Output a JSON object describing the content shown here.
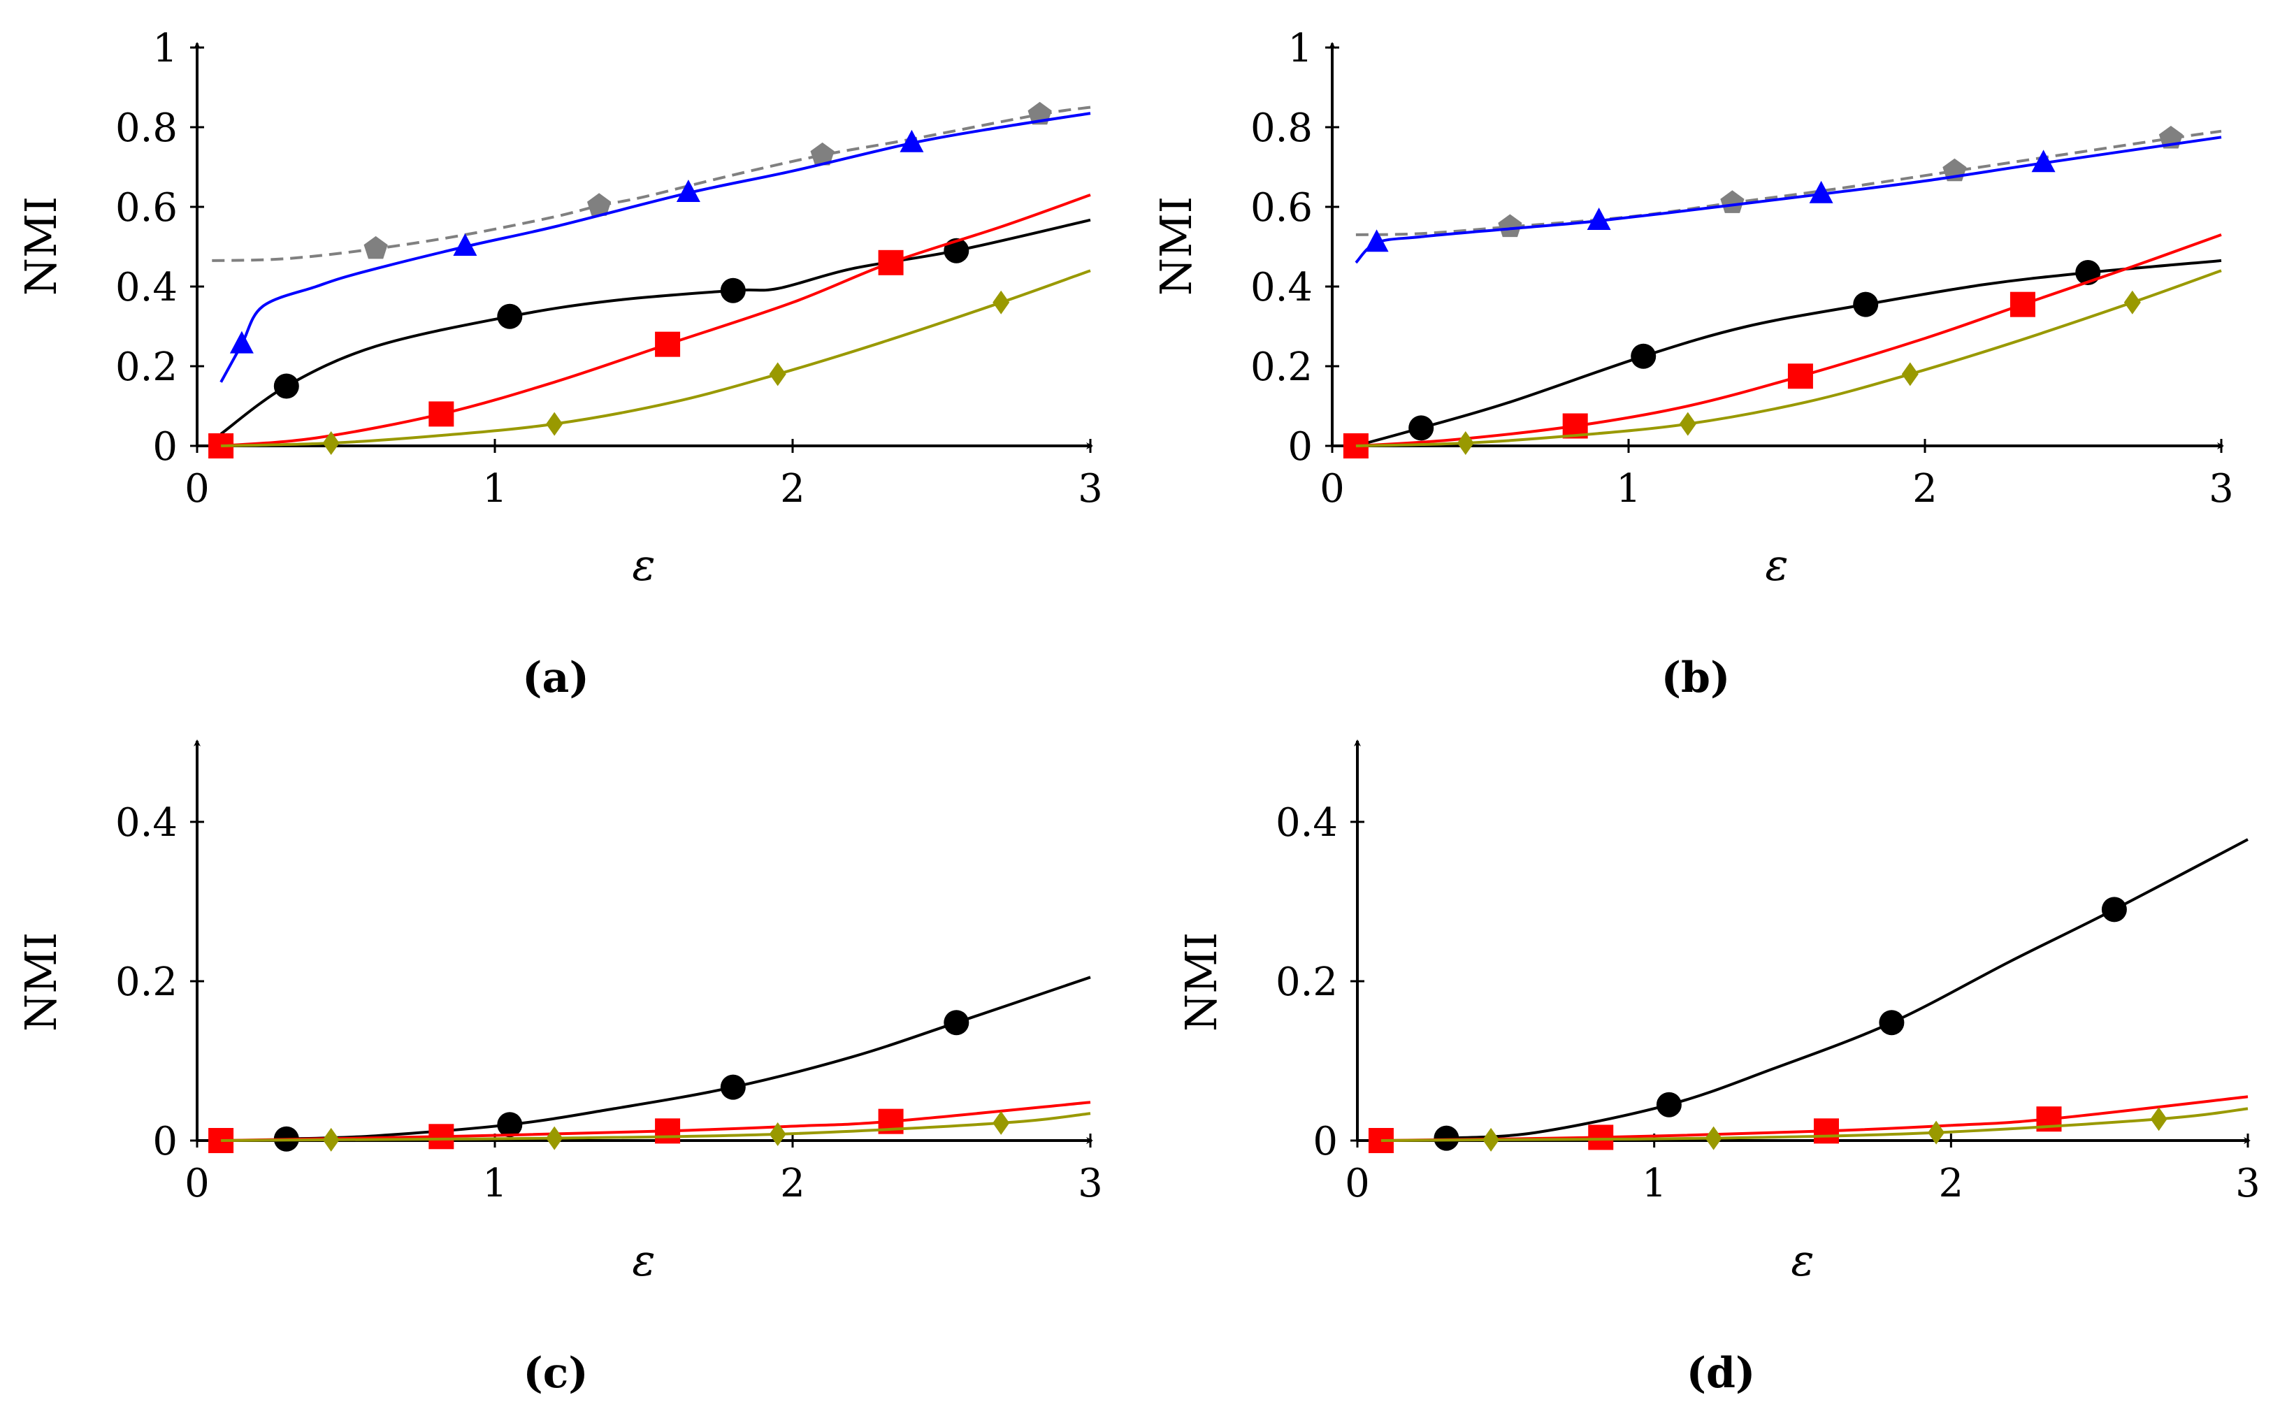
{
  "chart_data": [
    {
      "type": "line",
      "caption": "(a)",
      "xlabel": "ε",
      "ylabel": "NMI",
      "xlim": [
        0,
        3
      ],
      "ylim": [
        0,
        1
      ],
      "xticks": [
        "0",
        "1",
        "2",
        "3"
      ],
      "yticks": [
        "0",
        "0.2",
        "0.4",
        "0.6",
        "0.8",
        "1"
      ],
      "yticks_values": [
        0,
        0.2,
        0.4,
        0.6,
        0.8,
        1
      ],
      "series": [
        {
          "name": "gray-pentagon",
          "color": "#808080",
          "marker": "pentagon",
          "dashed": true,
          "x": [
            0.05,
            0.3,
            0.6,
            0.9,
            1.2,
            1.35,
            1.5,
            1.8,
            2.1,
            2.4,
            2.83,
            3.0
          ],
          "y": [
            0.465,
            0.47,
            0.495,
            0.53,
            0.575,
            0.603,
            0.625,
            0.68,
            0.73,
            0.77,
            0.832,
            0.85
          ],
          "markers_x": [
            0.6,
            1.35,
            2.1,
            2.83
          ],
          "markers_y": [
            0.495,
            0.603,
            0.73,
            0.832
          ]
        },
        {
          "name": "blue-triangle",
          "color": "#0000ff",
          "marker": "triangle",
          "dashed": false,
          "x": [
            0.08,
            0.15,
            0.22,
            0.4,
            0.55,
            0.9,
            1.2,
            1.65,
            2.0,
            2.4,
            2.7,
            3.0
          ],
          "y": [
            0.16,
            0.255,
            0.35,
            0.4,
            0.435,
            0.5,
            0.55,
            0.635,
            0.69,
            0.76,
            0.8,
            0.835
          ],
          "markers_x": [
            0.15,
            0.9,
            1.65,
            2.4
          ],
          "markers_y": [
            0.255,
            0.5,
            0.635,
            0.76
          ]
        },
        {
          "name": "black-circle",
          "color": "#000000",
          "marker": "circle",
          "dashed": false,
          "x": [
            0.08,
            0.3,
            0.6,
            1.05,
            1.4,
            1.8,
            1.95,
            2.2,
            2.55,
            3.0
          ],
          "y": [
            0.03,
            0.15,
            0.25,
            0.325,
            0.365,
            0.39,
            0.395,
            0.445,
            0.49,
            0.567
          ],
          "markers_x": [
            0.3,
            1.05,
            1.8,
            2.55
          ],
          "markers_y": [
            0.15,
            0.325,
            0.39,
            0.49
          ]
        },
        {
          "name": "red-square",
          "color": "#ff0000",
          "marker": "square",
          "dashed": false,
          "x": [
            0.08,
            0.4,
            0.82,
            1.2,
            1.58,
            2.0,
            2.33,
            2.7,
            3.0
          ],
          "y": [
            0.0,
            0.02,
            0.08,
            0.16,
            0.255,
            0.36,
            0.46,
            0.55,
            0.63
          ],
          "markers_x": [
            0.08,
            0.82,
            1.58,
            2.33
          ],
          "markers_y": [
            0.0,
            0.08,
            0.255,
            0.46
          ]
        },
        {
          "name": "olive-diamond",
          "color": "#999900",
          "marker": "diamond",
          "dashed": false,
          "x": [
            0.08,
            0.45,
            0.8,
            1.2,
            1.6,
            1.95,
            2.3,
            2.7,
            3.0
          ],
          "y": [
            0.0,
            0.007,
            0.025,
            0.055,
            0.11,
            0.18,
            0.26,
            0.36,
            0.44
          ],
          "markers_x": [
            0.45,
            1.2,
            1.95,
            2.7
          ],
          "markers_y": [
            0.007,
            0.055,
            0.18,
            0.36
          ]
        }
      ]
    },
    {
      "type": "line",
      "caption": "(b)",
      "xlabel": "ε",
      "ylabel": "NMI",
      "xlim": [
        0,
        3
      ],
      "ylim": [
        0,
        1
      ],
      "xticks": [
        "0",
        "1",
        "2",
        "3"
      ],
      "yticks": [
        "0",
        "0.2",
        "0.4",
        "0.6",
        "0.8",
        "1"
      ],
      "yticks_values": [
        0,
        0.2,
        0.4,
        0.6,
        0.8,
        1
      ],
      "series": [
        {
          "name": "gray-pentagon",
          "color": "#808080",
          "marker": "pentagon",
          "dashed": true,
          "x": [
            0.08,
            0.3,
            0.6,
            1.0,
            1.35,
            1.7,
            2.1,
            2.5,
            2.83,
            3.0
          ],
          "y": [
            0.53,
            0.533,
            0.55,
            0.575,
            0.61,
            0.645,
            0.69,
            0.735,
            0.772,
            0.79
          ],
          "markers_x": [
            0.6,
            1.35,
            2.1,
            2.83
          ],
          "markers_y": [
            0.55,
            0.61,
            0.69,
            0.772
          ]
        },
        {
          "name": "blue-triangle",
          "color": "#0000ff",
          "marker": "triangle",
          "dashed": false,
          "x": [
            0.08,
            0.15,
            0.3,
            0.6,
            0.9,
            1.3,
            1.65,
            2.0,
            2.4,
            3.0
          ],
          "y": [
            0.46,
            0.51,
            0.525,
            0.545,
            0.565,
            0.6,
            0.632,
            0.665,
            0.71,
            0.775
          ],
          "markers_x": [
            0.15,
            0.9,
            1.65,
            2.4
          ],
          "markers_y": [
            0.51,
            0.565,
            0.632,
            0.71
          ]
        },
        {
          "name": "black-circle",
          "color": "#000000",
          "marker": "circle",
          "dashed": false,
          "x": [
            0.08,
            0.3,
            0.6,
            1.05,
            1.4,
            1.8,
            2.2,
            2.55,
            3.0
          ],
          "y": [
            0.0,
            0.045,
            0.11,
            0.225,
            0.3,
            0.355,
            0.405,
            0.435,
            0.465
          ],
          "markers_x": [
            0.3,
            1.05,
            1.8,
            2.55
          ],
          "markers_y": [
            0.045,
            0.225,
            0.355,
            0.435
          ]
        },
        {
          "name": "red-square",
          "color": "#ff0000",
          "marker": "square",
          "dashed": false,
          "x": [
            0.08,
            0.4,
            0.82,
            1.2,
            1.58,
            2.0,
            2.33,
            2.7,
            3.0
          ],
          "y": [
            0.0,
            0.015,
            0.05,
            0.1,
            0.175,
            0.27,
            0.355,
            0.45,
            0.53
          ],
          "markers_x": [
            0.08,
            0.82,
            1.58,
            2.33
          ],
          "markers_y": [
            0.0,
            0.05,
            0.175,
            0.355
          ]
        },
        {
          "name": "olive-diamond",
          "color": "#999900",
          "marker": "diamond",
          "dashed": false,
          "x": [
            0.08,
            0.45,
            0.8,
            1.2,
            1.6,
            1.95,
            2.3,
            2.7,
            3.0
          ],
          "y": [
            0.0,
            0.007,
            0.025,
            0.055,
            0.11,
            0.18,
            0.26,
            0.36,
            0.44
          ],
          "markers_x": [
            0.45,
            1.2,
            1.95,
            2.7
          ],
          "markers_y": [
            0.007,
            0.055,
            0.18,
            0.36
          ]
        }
      ]
    },
    {
      "type": "line",
      "caption": "(c)",
      "xlabel": "ε",
      "ylabel": "NMI",
      "xlim": [
        0,
        3
      ],
      "ylim": [
        0,
        0.5
      ],
      "xticks": [
        "0",
        "1",
        "2",
        "3"
      ],
      "yticks": [
        "0",
        "0.2",
        "0.4"
      ],
      "yticks_values": [
        0,
        0.2,
        0.4
      ],
      "series": [
        {
          "name": "black-circle",
          "color": "#000000",
          "marker": "circle",
          "dashed": false,
          "x": [
            0.3,
            0.6,
            1.05,
            1.4,
            1.8,
            2.2,
            2.55,
            3.0
          ],
          "y": [
            0.002,
            0.006,
            0.02,
            0.04,
            0.067,
            0.105,
            0.148,
            0.205
          ],
          "markers_x": [
            0.3,
            1.05,
            1.8,
            2.55
          ],
          "markers_y": [
            0.002,
            0.02,
            0.067,
            0.148
          ]
        },
        {
          "name": "red-square",
          "color": "#ff0000",
          "marker": "square",
          "dashed": false,
          "x": [
            0.08,
            0.82,
            1.58,
            2.0,
            2.33,
            3.0
          ],
          "y": [
            0.0,
            0.005,
            0.012,
            0.018,
            0.024,
            0.048
          ],
          "markers_x": [
            0.08,
            0.82,
            1.58,
            2.33
          ],
          "markers_y": [
            0.0,
            0.005,
            0.012,
            0.024
          ]
        },
        {
          "name": "olive-diamond",
          "color": "#999900",
          "marker": "diamond",
          "dashed": false,
          "x": [
            0.08,
            0.45,
            1.2,
            1.95,
            2.7,
            3.0
          ],
          "y": [
            0.0,
            0.001,
            0.003,
            0.008,
            0.022,
            0.034
          ],
          "markers_x": [
            0.45,
            1.2,
            1.95,
            2.7
          ],
          "markers_y": [
            0.001,
            0.003,
            0.008,
            0.022
          ]
        }
      ]
    },
    {
      "type": "line",
      "caption": "(d)",
      "xlabel": "ε",
      "ylabel": "NMI",
      "xlim": [
        0,
        3
      ],
      "ylim": [
        0,
        0.5
      ],
      "xticks": [
        "0",
        "1",
        "2",
        "3"
      ],
      "yticks": [
        "0",
        "0.2",
        "0.4"
      ],
      "yticks_values": [
        0,
        0.2,
        0.4
      ],
      "series": [
        {
          "name": "black-circle",
          "color": "#000000",
          "marker": "circle",
          "dashed": false,
          "x": [
            0.3,
            0.6,
            1.05,
            1.4,
            1.8,
            2.2,
            2.55,
            3.0
          ],
          "y": [
            0.003,
            0.01,
            0.045,
            0.09,
            0.148,
            0.225,
            0.29,
            0.378
          ],
          "markers_x": [
            0.3,
            1.05,
            1.8,
            2.55
          ],
          "markers_y": [
            0.003,
            0.045,
            0.148,
            0.29
          ]
        },
        {
          "name": "red-square",
          "color": "#ff0000",
          "marker": "square",
          "dashed": false,
          "x": [
            0.08,
            0.82,
            1.58,
            2.0,
            2.33,
            3.0
          ],
          "y": [
            0.0,
            0.004,
            0.012,
            0.019,
            0.027,
            0.055
          ],
          "markers_x": [
            0.08,
            0.82,
            1.58,
            2.33
          ],
          "markers_y": [
            0.0,
            0.004,
            0.012,
            0.027
          ]
        },
        {
          "name": "olive-diamond",
          "color": "#999900",
          "marker": "diamond",
          "dashed": false,
          "x": [
            0.08,
            0.45,
            1.2,
            1.95,
            2.7,
            3.0
          ],
          "y": [
            0.0,
            0.001,
            0.003,
            0.01,
            0.027,
            0.04
          ],
          "markers_x": [
            0.45,
            1.2,
            1.95,
            2.7
          ],
          "markers_y": [
            0.001,
            0.003,
            0.01,
            0.027
          ]
        }
      ]
    }
  ]
}
